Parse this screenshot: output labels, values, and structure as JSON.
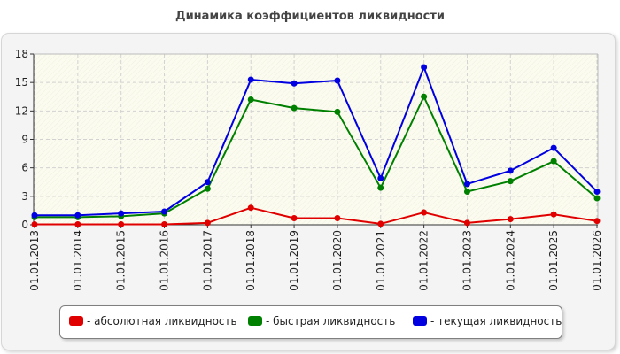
{
  "chart_data": {
    "type": "line",
    "title": "Динамика коэффициентов ликвидности",
    "xlabel": "",
    "ylabel": "",
    "categories": [
      "01.01.2013",
      "01.01.2014",
      "01.01.2015",
      "01.01.2016",
      "01.01.2017",
      "01.01.2018",
      "01.01.2019",
      "01.01.2020",
      "01.01.2021",
      "01.01.2022",
      "01.01.2023",
      "01.01.2024",
      "01.01.2025",
      "01.01.2026"
    ],
    "y_ticks": [
      "0",
      "3",
      "6",
      "9",
      "12",
      "15",
      "18"
    ],
    "ylim": [
      0,
      18
    ],
    "grid": true,
    "legend_position": "bottom",
    "series": [
      {
        "name": "- абсолютная ликвидность",
        "color": "#e00000",
        "values": [
          0.05,
          0.05,
          0.05,
          0.05,
          0.2,
          1.8,
          0.7,
          0.7,
          0.1,
          1.3,
          0.2,
          0.6,
          1.1,
          0.4
        ]
      },
      {
        "name": "- быстрая ликвидность",
        "color": "#008000",
        "values": [
          0.8,
          0.8,
          0.9,
          1.2,
          3.8,
          13.2,
          12.3,
          11.9,
          3.9,
          13.5,
          3.5,
          4.6,
          6.7,
          2.8
        ]
      },
      {
        "name": "- текущая ликвидность",
        "color": "#0000e0",
        "values": [
          1.0,
          1.0,
          1.2,
          1.4,
          4.5,
          15.3,
          14.9,
          15.2,
          4.9,
          16.6,
          4.3,
          5.7,
          8.1,
          3.5
        ]
      }
    ]
  }
}
